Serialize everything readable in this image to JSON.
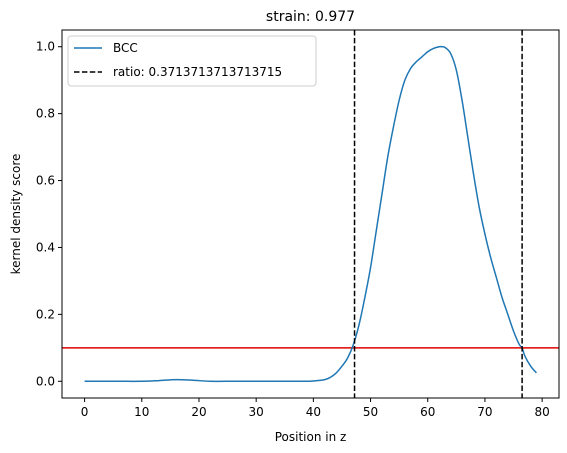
{
  "chart_data": {
    "type": "line",
    "title": "strain: 0.977",
    "xlabel": "Position in z",
    "ylabel": "kernel density score",
    "xlim": [
      -3.95,
      82.95
    ],
    "ylim": [
      -0.05,
      1.05
    ],
    "xticks": [
      0,
      10,
      20,
      30,
      40,
      50,
      60,
      70,
      80
    ],
    "yticks": [
      0.0,
      0.2,
      0.4,
      0.6,
      0.8,
      1.0
    ],
    "xtick_labels": [
      "0",
      "10",
      "20",
      "30",
      "40",
      "50",
      "60",
      "70",
      "80"
    ],
    "ytick_labels": [
      "0.0",
      "0.2",
      "0.4",
      "0.6",
      "0.8",
      "1.0"
    ],
    "grid": false,
    "legend_position": "top-left",
    "series": [
      {
        "name": "BCC",
        "color": "#1f77b4",
        "x": [
          0,
          5,
          10,
          13,
          16,
          19,
          22,
          26,
          30,
          34,
          38,
          40,
          42,
          43,
          44,
          45,
          46,
          47,
          48,
          49,
          50,
          51,
          52,
          53,
          54,
          55,
          56,
          57,
          58,
          59,
          60,
          61,
          62,
          62.5,
          63,
          64,
          65,
          66,
          67,
          68,
          69,
          70,
          71,
          72,
          73,
          74,
          75,
          76,
          76.5,
          77,
          78,
          79
        ],
        "y": [
          0.0,
          0.0,
          0.0,
          0.002,
          0.005,
          0.003,
          0.0,
          0.0,
          0.0,
          0.0,
          0.0,
          0.001,
          0.005,
          0.012,
          0.025,
          0.045,
          0.07,
          0.11,
          0.17,
          0.25,
          0.34,
          0.45,
          0.56,
          0.67,
          0.76,
          0.84,
          0.9,
          0.935,
          0.955,
          0.97,
          0.985,
          0.995,
          1.0,
          1.0,
          0.998,
          0.98,
          0.93,
          0.84,
          0.73,
          0.62,
          0.52,
          0.44,
          0.37,
          0.31,
          0.25,
          0.2,
          0.15,
          0.11,
          0.1,
          0.075,
          0.045,
          0.025
        ]
      }
    ],
    "vlines": {
      "label": "ratio: 0.3713713713713715",
      "color": "#000000",
      "style": "dashed",
      "x": [
        47.2,
        76.5
      ]
    },
    "hline": {
      "y": 0.1,
      "color": "#e00000"
    }
  }
}
